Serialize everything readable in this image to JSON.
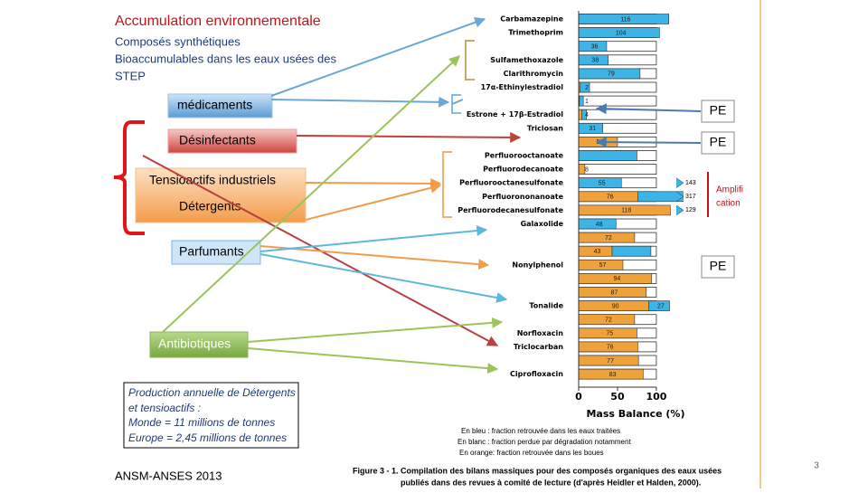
{
  "slide": {
    "title": "Accumulation environnementale",
    "subtitle": [
      "Composés synthétiques",
      "Bioaccumulables dans les eaux usées des",
      "STEP"
    ],
    "boxes": [
      "médicaments",
      "Désinfectants",
      "Tensioactifs industriels",
      "Détergents",
      "Parfumants",
      "Antibiotiques"
    ],
    "pe_labels": [
      "PE",
      "PE",
      "PE"
    ],
    "amplification": [
      "Amplifi",
      "cation"
    ],
    "production_note": [
      "Production annuelle de Détergents",
      "et tensioactifs :",
      "Monde = 11 millions de tonnes",
      "Europe  = 2,45 millions de tonnes"
    ],
    "source": "ANSM-ANSES 2013",
    "page_number": 3
  },
  "figure": {
    "legend": [
      "En bleu : fraction retrouvée dans les eaux traitées",
      "En blanc : fraction perdue par dégradation notamment",
      "En orange: fraction retrouvée dans les boues"
    ],
    "caption": [
      "Figure 3 - 1. Compilation des bilans massiques pour des composés organiques des eaux usées",
      "publiés dans des revues à comité de lecture (d'après Heidler et Halden, 2000)."
    ]
  },
  "chart_data": {
    "type": "bar",
    "orientation": "horizontal",
    "stacked": true,
    "xlabel": "Mass Balance (%)",
    "xlim": [
      0,
      135
    ],
    "xticks": [
      0,
      50,
      100
    ],
    "categories": [
      "Carbamazepine",
      "Trimethoprim",
      null,
      "Sulfamethoxazole",
      "Clarithromycin",
      "17α-Ethinylestradiol",
      null,
      "Estrone + 17β-Estradiol",
      "Triclosan",
      null,
      "Perfluorooctanoate",
      "Perfluorodecanoate",
      "Perfluorooctanesulfonate",
      "Perfluorononanoate",
      "Perfluorodecanesulfonate",
      "Galaxolide",
      null,
      null,
      "Nonylphenol",
      null,
      null,
      "Tonalide",
      null,
      "Norfloxacin",
      "Triclocarban",
      null,
      "Ciprofloxacin"
    ],
    "series": [
      {
        "color": "#f0a23a",
        "values": [
          null,
          null,
          null,
          null,
          null,
          2,
          1,
          4,
          null,
          50,
          null,
          8,
          null,
          76,
          118,
          null,
          72,
          43,
          57,
          94,
          87,
          90,
          72,
          75,
          76,
          77,
          83
        ],
        "value_labels": [
          null,
          null,
          null,
          null,
          null,
          "2",
          "1",
          "4",
          null,
          "50",
          null,
          "8",
          null,
          "76",
          "118",
          null,
          "72",
          "43",
          "57",
          "94",
          "87",
          "90",
          "72",
          "75",
          "76",
          "77",
          "83"
        ]
      },
      {
        "color": "#3cb4e6",
        "values": [
          116,
          104,
          36,
          38,
          79,
          12,
          5,
          6,
          31,
          null,
          75,
          null,
          55,
          60,
          null,
          48,
          null,
          50,
          null,
          null,
          null,
          27,
          null,
          null,
          null,
          null,
          null
        ],
        "value_labels": [
          "116",
          "104",
          "36",
          "38",
          "79",
          null,
          null,
          null,
          "31",
          null,
          null,
          null,
          "55",
          null,
          null,
          "48",
          null,
          null,
          null,
          null,
          null,
          "27",
          null,
          null,
          null,
          null,
          null
        ]
      }
    ],
    "overflow_labels": [
      null,
      null,
      null,
      null,
      null,
      null,
      null,
      null,
      null,
      null,
      null,
      null,
      "143",
      "317",
      "129",
      null,
      null,
      null,
      null,
      null,
      null,
      null,
      null,
      null,
      null,
      null,
      null
    ]
  }
}
